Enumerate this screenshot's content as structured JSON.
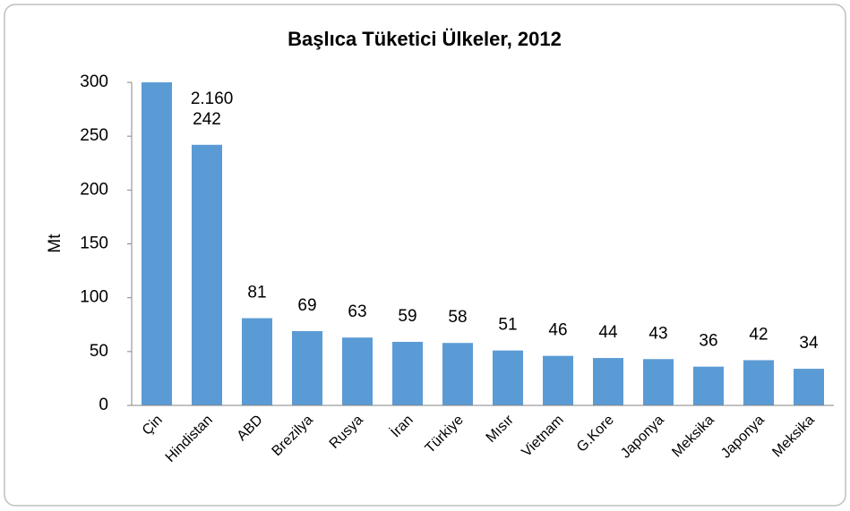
{
  "chart_data": {
    "type": "bar",
    "title": "Başlıca Tüketici Ülkeler, 2012",
    "y_label": "Mt",
    "categories": [
      "Çin",
      "Hindistan",
      "ABD",
      "Brezilya",
      "Rusya",
      "İran",
      "Türkiye",
      "Mısır",
      "Vietnam",
      "G.Kore",
      "Japonya",
      "Meksika",
      "Japonya",
      "Meksika"
    ],
    "values": [
      2160,
      242,
      81,
      69,
      63,
      59,
      58,
      51,
      46,
      44,
      43,
      36,
      42,
      34
    ],
    "value_labels": [
      "2.160",
      "242",
      "81",
      "69",
      "63",
      "59",
      "58",
      "51",
      "46",
      "44",
      "43",
      "36",
      "42",
      "34"
    ],
    "color": "#5b9bd5",
    "ylim": [
      0,
      300
    ],
    "yticks": [
      0,
      50,
      100,
      150,
      200,
      250,
      300
    ],
    "grid": false
  }
}
